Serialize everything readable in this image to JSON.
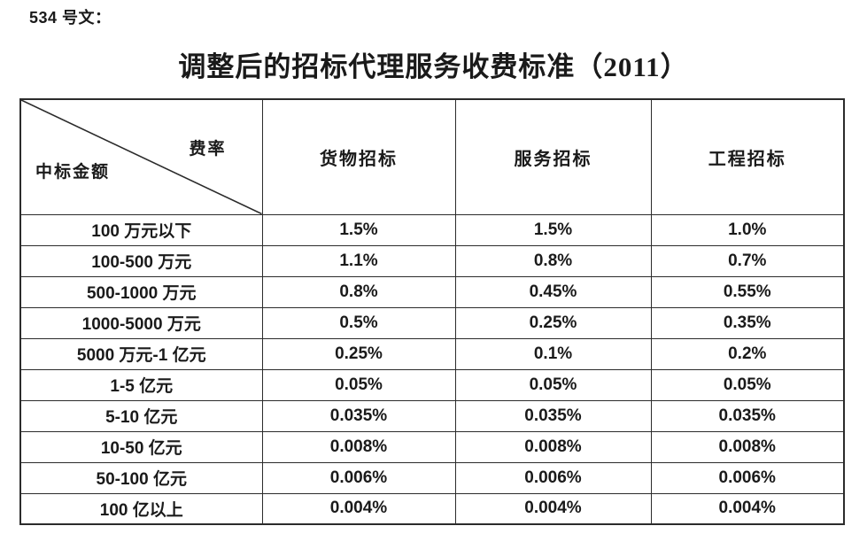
{
  "doc": {
    "ref": "534 号文：",
    "title": "调整后的招标代理服务收费标准（2011）"
  },
  "table": {
    "corner": {
      "top_right": "费率",
      "bottom_left": "中标金额"
    },
    "columns": [
      "货物招标",
      "服务招标",
      "工程招标"
    ],
    "rows": [
      {
        "amount": "100 万元以下",
        "rates": [
          "1.5%",
          "1.5%",
          "1.0%"
        ]
      },
      {
        "amount": "100-500 万元",
        "rates": [
          "1.1%",
          "0.8%",
          "0.7%"
        ]
      },
      {
        "amount": "500-1000 万元",
        "rates": [
          "0.8%",
          "0.45%",
          "0.55%"
        ]
      },
      {
        "amount": "1000-5000 万元",
        "rates": [
          "0.5%",
          "0.25%",
          "0.35%"
        ]
      },
      {
        "amount": "5000 万元-1 亿元",
        "rates": [
          "0.25%",
          "0.1%",
          "0.2%"
        ]
      },
      {
        "amount": "1-5 亿元",
        "rates": [
          "0.05%",
          "0.05%",
          "0.05%"
        ]
      },
      {
        "amount": "5-10 亿元",
        "rates": [
          "0.035%",
          "0.035%",
          "0.035%"
        ]
      },
      {
        "amount": "10-50 亿元",
        "rates": [
          "0.008%",
          "0.008%",
          "0.008%"
        ]
      },
      {
        "amount": "50-100 亿元",
        "rates": [
          "0.006%",
          "0.006%",
          "0.006%"
        ]
      },
      {
        "amount": "100 亿以上",
        "rates": [
          "0.004%",
          "0.004%",
          "0.004%"
        ]
      }
    ],
    "colors": {
      "border": "#2b2b2b",
      "text": "#1a1a1a",
      "background": "#ffffff"
    }
  }
}
